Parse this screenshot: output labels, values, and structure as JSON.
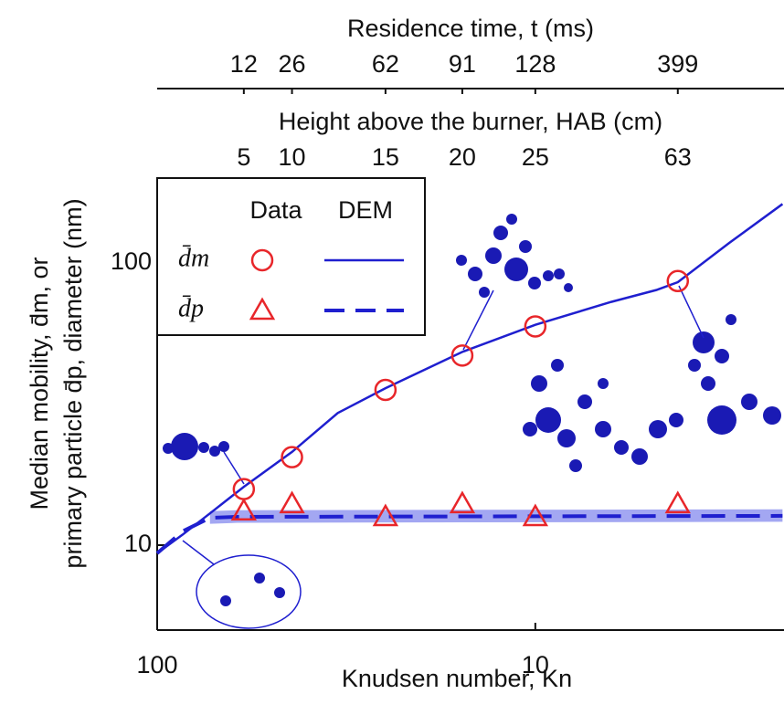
{
  "chart_data": {
    "type": "line",
    "xlabel": "Knudsen number, Kn",
    "ylabel": [
      "Median mobility, d̄m, or",
      "primary particle d̄p, diameter (nm)"
    ],
    "x2label": "Height above the burner, HAB (cm)",
    "x3label": "Residence time, t (ms)",
    "xscale": "log",
    "yscale": "log",
    "xlim": [
      100,
      2.2
    ],
    "ylim": [
      5,
      200
    ],
    "xticks": [
      100,
      10
    ],
    "yticks": [
      10,
      100
    ],
    "x2ticks": [
      {
        "value": 59,
        "label": "5"
      },
      {
        "value": 44,
        "label": "10"
      },
      {
        "value": 24.9,
        "label": "15"
      },
      {
        "value": 15.6,
        "label": "20"
      },
      {
        "value": 10,
        "label": "25"
      },
      {
        "value": 4.2,
        "label": "63"
      }
    ],
    "x3ticks": [
      {
        "value": 59,
        "label": "12"
      },
      {
        "value": 44,
        "label": "26"
      },
      {
        "value": 24.9,
        "label": "62"
      },
      {
        "value": 15.6,
        "label": "91"
      },
      {
        "value": 10,
        "label": "128"
      },
      {
        "value": 4.2,
        "label": "399"
      }
    ],
    "legend_columns": [
      "Data",
      "DEM"
    ],
    "legend": "upper left",
    "series": [
      {
        "name": "d̄m",
        "color": "#e8262a",
        "marker": "circle",
        "x": [
          59,
          44,
          24.9,
          15.6,
          10,
          4.2
        ],
        "values": [
          15.8,
          20.5,
          35.5,
          47,
          59.6,
          86.3
        ],
        "dem": {
          "color": "#1f1fcf",
          "dash": false,
          "x": [
            100,
            85.6,
            72.5,
            59,
            44,
            33.3,
            24.9,
            15.6,
            10,
            6.3,
            4.79,
            4.2,
            3.07,
            2.22
          ],
          "values": [
            9.36,
            10.9,
            12.96,
            16.1,
            21.4,
            29.4,
            36,
            48.4,
            60.4,
            72.8,
            80.2,
            85.5,
            117.8,
            161.8
          ]
        }
      },
      {
        "name": "d̄p",
        "color": "#e8262a",
        "marker": "triangle",
        "x": [
          59,
          44,
          24.9,
          15.6,
          10,
          4.2
        ],
        "values": [
          13.2,
          14,
          12.6,
          14,
          12.6,
          14
        ],
        "dem": {
          "color": "#1f1fcf",
          "dash": true,
          "x": [
            100,
            85.6,
            72.5,
            61.4,
            2.22
          ],
          "values": [
            9.36,
            11.2,
            12.5,
            12.6,
            12.7
          ],
          "band": {
            "color": "#a3a7f2",
            "x": [
              72.5,
              61.4,
              2.22
            ],
            "lower": [
              11.9,
              12,
              12.1
            ],
            "upper": [
              13.2,
              13.3,
              13.4
            ]
          }
        }
      }
    ]
  }
}
